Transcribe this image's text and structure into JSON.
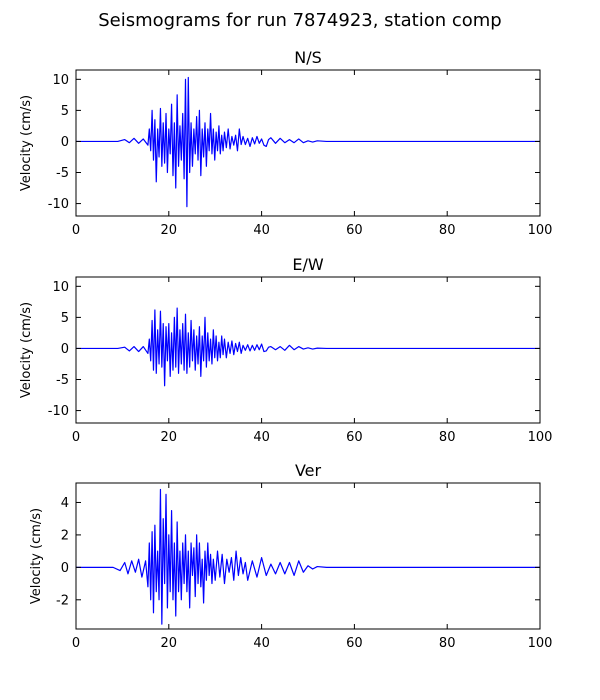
{
  "figure": {
    "suptitle": "Seismograms for run 7874923, station comp"
  },
  "colors": {
    "trace": "#0000ff",
    "axes": "#000000",
    "background": "#ffffff"
  },
  "chart_data": [
    {
      "type": "line",
      "title": "N/S",
      "xlabel": "",
      "ylabel": "Velocity (cm/s)",
      "xlim": [
        0,
        100
      ],
      "ylim": [
        -12,
        11.5
      ],
      "xticks": [
        0,
        20,
        40,
        60,
        80,
        100
      ],
      "yticks": [
        -10,
        -5,
        0,
        5,
        10
      ],
      "grid": false,
      "series": [
        {
          "x": [
            0,
            9,
            10.5,
            11.5,
            12.5,
            13.5,
            14.5,
            15.5,
            15.8,
            16.1,
            16.4,
            16.7,
            17.0,
            17.3,
            17.6,
            17.9,
            18.2,
            18.5,
            18.8,
            19.1,
            19.4,
            19.7,
            20.0,
            20.3,
            20.6,
            20.9,
            21.2,
            21.5,
            21.8,
            22.1,
            22.4,
            22.7,
            23.0,
            23.3,
            23.6,
            23.9,
            24.2,
            24.5,
            24.8,
            25.1,
            25.4,
            25.7,
            26.0,
            26.3,
            26.6,
            26.9,
            27.2,
            27.5,
            27.8,
            28.1,
            28.4,
            28.7,
            29.0,
            29.3,
            29.6,
            29.9,
            30.2,
            30.5,
            30.8,
            31.1,
            31.4,
            31.7,
            32.0,
            32.4,
            32.8,
            33.2,
            33.6,
            34.0,
            34.4,
            34.8,
            35.2,
            35.6,
            36.0,
            36.5,
            37.0,
            37.5,
            38.0,
            38.5,
            39.0,
            39.5,
            40.0,
            40.5,
            41.0,
            41.5,
            42.0,
            43.0,
            44.0,
            45.0,
            46.0,
            47.0,
            48.0,
            49.0,
            50.0,
            51.0,
            52.0,
            54.0,
            60.0,
            100.0
          ],
          "y": [
            0,
            0,
            0.3,
            -0.2,
            0.5,
            -0.3,
            0.4,
            -0.6,
            2.0,
            -1.5,
            5.0,
            -3.0,
            3.5,
            -6.5,
            2.0,
            -2.5,
            5.3,
            -4.0,
            3.0,
            -3.5,
            4.5,
            -5.0,
            2.0,
            -2.0,
            6.0,
            -5.5,
            3.0,
            -7.5,
            7.5,
            -4.0,
            2.5,
            -3.0,
            4.5,
            -6.0,
            10.0,
            -10.5,
            10.3,
            -5.0,
            3.0,
            -4.0,
            2.0,
            -2.0,
            4.0,
            -3.0,
            5.0,
            -5.5,
            2.0,
            -2.5,
            3.0,
            -4.0,
            2.0,
            -1.5,
            4.5,
            -2.0,
            2.0,
            -3.0,
            1.5,
            -1.5,
            2.5,
            -2.0,
            1.0,
            -1.5,
            1.5,
            -1.0,
            2.0,
            -1.2,
            0.8,
            -0.6,
            1.0,
            -1.5,
            2.0,
            -0.5,
            0.8,
            -0.5,
            0.5,
            -0.8,
            0.6,
            -0.4,
            0.8,
            -0.3,
            0.4,
            -0.6,
            -0.8,
            0.3,
            0.6,
            -0.3,
            0.5,
            -0.2,
            0.3,
            -0.2,
            0.4,
            -0.2,
            0.1,
            -0.1,
            0.1,
            0,
            0,
            0
          ]
        }
      ]
    },
    {
      "type": "line",
      "title": "E/W",
      "xlabel": "",
      "ylabel": "Velocity (cm/s)",
      "xlim": [
        0,
        100
      ],
      "ylim": [
        -12,
        11.5
      ],
      "xticks": [
        0,
        20,
        40,
        60,
        80,
        100
      ],
      "yticks": [
        -10,
        -5,
        0,
        5,
        10
      ],
      "grid": false,
      "series": [
        {
          "x": [
            0,
            9,
            10.5,
            11.5,
            12.5,
            13.5,
            14.5,
            15.5,
            15.8,
            16.1,
            16.4,
            16.7,
            17.0,
            17.3,
            17.6,
            17.9,
            18.2,
            18.5,
            18.8,
            19.1,
            19.4,
            19.7,
            20.0,
            20.3,
            20.6,
            20.9,
            21.2,
            21.5,
            21.8,
            22.1,
            22.4,
            22.7,
            23.0,
            23.3,
            23.6,
            23.9,
            24.2,
            24.5,
            24.8,
            25.1,
            25.4,
            25.7,
            26.0,
            26.3,
            26.6,
            26.9,
            27.2,
            27.5,
            27.8,
            28.1,
            28.4,
            28.7,
            29.0,
            29.3,
            29.6,
            29.9,
            30.2,
            30.5,
            30.8,
            31.1,
            31.4,
            31.7,
            32.0,
            32.4,
            32.8,
            33.2,
            33.6,
            34.0,
            34.4,
            34.8,
            35.2,
            35.6,
            36.0,
            36.5,
            37.0,
            37.5,
            38.0,
            38.5,
            39.0,
            39.5,
            40.0,
            40.5,
            41.0,
            41.5,
            42.0,
            43.0,
            44.0,
            45.0,
            46.0,
            47.0,
            48.0,
            49.0,
            50.0,
            51.0,
            52.0,
            54.0,
            60.0,
            100.0
          ],
          "y": [
            0,
            0,
            0.2,
            -0.4,
            0.3,
            -0.5,
            0.3,
            -0.8,
            1.5,
            -2.0,
            4.5,
            -3.5,
            6.2,
            -4.0,
            3.0,
            -2.5,
            6.0,
            -3.0,
            4.0,
            -6.0,
            3.5,
            -2.0,
            4.0,
            -4.5,
            2.5,
            -3.5,
            5.0,
            -3.0,
            6.5,
            -4.0,
            3.0,
            -2.5,
            4.0,
            -3.5,
            5.5,
            -4.0,
            2.5,
            -3.0,
            4.5,
            -2.0,
            3.0,
            -3.5,
            2.0,
            -2.5,
            3.5,
            -4.5,
            2.0,
            -2.0,
            5.0,
            -3.0,
            2.5,
            -2.0,
            1.5,
            -2.5,
            3.0,
            -1.5,
            2.0,
            -2.0,
            1.0,
            -1.5,
            2.0,
            -1.0,
            1.5,
            -1.5,
            1.0,
            -0.8,
            1.2,
            -1.0,
            0.8,
            -0.5,
            1.0,
            -0.8,
            0.5,
            -0.3,
            0.6,
            -0.4,
            0.5,
            -0.3,
            0.6,
            -0.2,
            0.7,
            -0.5,
            -0.4,
            0.2,
            0.3,
            -0.2,
            0.3,
            -0.3,
            0.5,
            -0.2,
            0.3,
            -0.1,
            0.1,
            -0.1,
            0.05,
            0,
            0,
            0
          ]
        }
      ]
    },
    {
      "type": "line",
      "title": "Ver",
      "xlabel": "",
      "ylabel": "Velocity (cm/s)",
      "xlim": [
        0,
        100
      ],
      "ylim": [
        -3.8,
        5.2
      ],
      "xticks": [
        0,
        20,
        40,
        60,
        80,
        100
      ],
      "yticks": [
        -2,
        0,
        2,
        4
      ],
      "grid": false,
      "series": [
        {
          "x": [
            0,
            8,
            9.5,
            10.5,
            11.2,
            12.0,
            12.8,
            13.5,
            14.2,
            15.0,
            15.5,
            15.8,
            16.1,
            16.4,
            16.7,
            17.0,
            17.3,
            17.6,
            17.9,
            18.2,
            18.5,
            18.8,
            19.1,
            19.4,
            19.7,
            20.0,
            20.3,
            20.6,
            20.9,
            21.2,
            21.5,
            21.8,
            22.1,
            22.4,
            22.7,
            23.0,
            23.3,
            23.6,
            23.9,
            24.2,
            24.5,
            24.8,
            25.1,
            25.4,
            25.7,
            26.0,
            26.3,
            26.6,
            26.9,
            27.2,
            27.5,
            27.8,
            28.1,
            28.4,
            28.7,
            29.0,
            29.3,
            29.6,
            30.0,
            30.5,
            31.0,
            31.5,
            32.0,
            32.5,
            33.0,
            33.5,
            34.0,
            34.5,
            35.0,
            35.5,
            36.0,
            36.5,
            37.0,
            38.0,
            39.0,
            40.0,
            41.0,
            42.0,
            43.0,
            44.0,
            45.0,
            46.0,
            47.0,
            48.0,
            49.0,
            50.0,
            51.0,
            52.0,
            54.0,
            60.0,
            100.0
          ],
          "y": [
            0,
            0,
            -0.2,
            0.3,
            -0.4,
            0.4,
            -0.3,
            0.5,
            -0.6,
            0.4,
            -1.2,
            1.5,
            -2.0,
            2.2,
            -2.8,
            2.6,
            -1.5,
            1.0,
            -2.0,
            4.8,
            -3.5,
            3.0,
            -1.0,
            4.5,
            -2.5,
            2.0,
            -1.5,
            3.5,
            -2.0,
            1.5,
            -3.0,
            2.8,
            -1.5,
            1.0,
            -2.0,
            1.5,
            -1.0,
            2.0,
            -1.5,
            1.0,
            -2.5,
            1.5,
            -0.5,
            1.2,
            -1.8,
            2.0,
            -1.0,
            1.5,
            -1.2,
            0.5,
            -2.2,
            1.0,
            -0.8,
            1.5,
            -0.5,
            0.8,
            -1.0,
            0.5,
            -0.8,
            1.0,
            -0.6,
            0.8,
            -1.0,
            0.5,
            -0.3,
            0.6,
            -0.8,
            1.0,
            -0.5,
            0.6,
            -0.4,
            0.3,
            -0.8,
            0.4,
            -0.6,
            0.6,
            -0.5,
            0.2,
            -0.4,
            0.3,
            -0.4,
            0.3,
            -0.5,
            0.4,
            -0.3,
            0.1,
            -0.1,
            0.05,
            0,
            0,
            0
          ]
        }
      ]
    }
  ]
}
